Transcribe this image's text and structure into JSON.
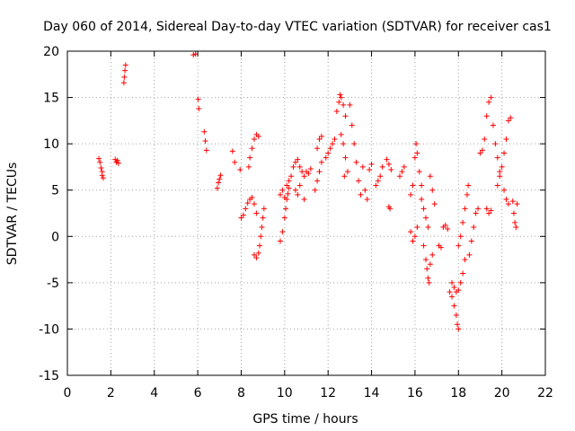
{
  "chart_data": {
    "type": "scatter",
    "title": "Day 060 of 2014, Sidereal Day-to-day VTEC variation (SDTVAR) for receiver cas1",
    "xlabel": "GPS time / hours",
    "ylabel": "SDTVAR / TECUs",
    "xlim": [
      0,
      22
    ],
    "ylim": [
      -15,
      20
    ],
    "xticks": [
      0,
      2,
      4,
      6,
      8,
      10,
      12,
      14,
      16,
      18,
      20,
      22
    ],
    "yticks": [
      -15,
      -10,
      -5,
      0,
      5,
      10,
      15,
      20
    ],
    "grid": true,
    "marker": "+",
    "color": "#ff0000",
    "series": [
      {
        "name": "cas1",
        "points": [
          [
            1.45,
            8.4
          ],
          [
            1.5,
            8.0
          ],
          [
            1.55,
            7.4
          ],
          [
            1.6,
            6.6
          ],
          [
            1.65,
            6.3
          ],
          [
            1.6,
            7.0
          ],
          [
            2.2,
            8.3
          ],
          [
            2.25,
            8.0
          ],
          [
            2.3,
            8.2
          ],
          [
            2.35,
            7.9
          ],
          [
            2.6,
            16.6
          ],
          [
            2.62,
            17.2
          ],
          [
            2.65,
            17.9
          ],
          [
            2.68,
            18.5
          ],
          [
            5.8,
            19.6
          ],
          [
            5.9,
            19.7
          ],
          [
            6.02,
            14.8
          ],
          [
            6.05,
            13.8
          ],
          [
            6.3,
            11.3
          ],
          [
            6.35,
            10.3
          ],
          [
            6.4,
            9.3
          ],
          [
            6.9,
            5.2
          ],
          [
            6.95,
            5.8
          ],
          [
            7.0,
            6.2
          ],
          [
            7.05,
            6.6
          ],
          [
            7.6,
            9.2
          ],
          [
            7.7,
            8.0
          ],
          [
            7.95,
            7.2
          ],
          [
            8.0,
            2.0
          ],
          [
            8.1,
            2.3
          ],
          [
            8.2,
            3.0
          ],
          [
            8.3,
            3.6
          ],
          [
            8.4,
            4.0
          ],
          [
            8.5,
            4.2
          ],
          [
            8.6,
            3.5
          ],
          [
            8.7,
            2.5
          ],
          [
            8.35,
            7.5
          ],
          [
            8.4,
            8.5
          ],
          [
            8.5,
            9.5
          ],
          [
            8.6,
            10.5
          ],
          [
            8.7,
            11.0
          ],
          [
            8.8,
            10.8
          ],
          [
            8.6,
            -2.0
          ],
          [
            8.7,
            -2.3
          ],
          [
            8.8,
            -1.8
          ],
          [
            8.85,
            -1.0
          ],
          [
            8.9,
            0.0
          ],
          [
            8.95,
            1.0
          ],
          [
            9.0,
            2.0
          ],
          [
            9.05,
            3.0
          ],
          [
            9.8,
            -0.5
          ],
          [
            9.9,
            0.5
          ],
          [
            10.0,
            2.0
          ],
          [
            10.05,
            3.0
          ],
          [
            10.1,
            4.0
          ],
          [
            10.15,
            4.6
          ],
          [
            10.2,
            5.2
          ],
          [
            9.8,
            4.5
          ],
          [
            9.9,
            5.0
          ],
          [
            10.0,
            4.2
          ],
          [
            10.1,
            5.5
          ],
          [
            10.2,
            6.0
          ],
          [
            10.3,
            6.5
          ],
          [
            10.4,
            7.5
          ],
          [
            10.5,
            8.0
          ],
          [
            10.6,
            8.3
          ],
          [
            10.7,
            7.5
          ],
          [
            10.8,
            7.0
          ],
          [
            10.9,
            6.5
          ],
          [
            11.0,
            7.0
          ],
          [
            10.5,
            5.0
          ],
          [
            10.6,
            4.5
          ],
          [
            10.7,
            5.5
          ],
          [
            10.9,
            4.0
          ],
          [
            11.1,
            6.8
          ],
          [
            11.2,
            7.3
          ],
          [
            11.4,
            5.0
          ],
          [
            11.5,
            6.0
          ],
          [
            11.6,
            7.0
          ],
          [
            11.7,
            8.0
          ],
          [
            11.5,
            9.5
          ],
          [
            11.6,
            10.5
          ],
          [
            11.7,
            10.8
          ],
          [
            11.9,
            8.5
          ],
          [
            12.0,
            9.0
          ],
          [
            12.1,
            9.5
          ],
          [
            12.2,
            10.0
          ],
          [
            12.3,
            10.5
          ],
          [
            12.4,
            13.5
          ],
          [
            12.5,
            14.5
          ],
          [
            12.55,
            15.3
          ],
          [
            12.6,
            15.0
          ],
          [
            12.7,
            14.2
          ],
          [
            12.8,
            13.0
          ],
          [
            12.6,
            11.0
          ],
          [
            12.7,
            10.0
          ],
          [
            12.8,
            8.5
          ],
          [
            12.9,
            7.0
          ],
          [
            12.75,
            6.5
          ],
          [
            13.0,
            14.2
          ],
          [
            13.1,
            12.0
          ],
          [
            13.2,
            10.0
          ],
          [
            13.3,
            8.0
          ],
          [
            13.4,
            6.0
          ],
          [
            13.5,
            4.5
          ],
          [
            13.6,
            7.5
          ],
          [
            13.7,
            5.0
          ],
          [
            13.8,
            4.0
          ],
          [
            13.9,
            7.2
          ],
          [
            14.0,
            7.8
          ],
          [
            14.2,
            5.5
          ],
          [
            14.3,
            6.0
          ],
          [
            14.4,
            6.5
          ],
          [
            14.5,
            7.5
          ],
          [
            14.7,
            8.3
          ],
          [
            14.8,
            7.8
          ],
          [
            14.9,
            7.2
          ],
          [
            14.8,
            3.2
          ],
          [
            14.85,
            3.0
          ],
          [
            15.3,
            6.5
          ],
          [
            15.4,
            7.0
          ],
          [
            15.5,
            7.5
          ],
          [
            15.8,
            4.5
          ],
          [
            15.9,
            5.5
          ],
          [
            16.0,
            8.5
          ],
          [
            16.05,
            10.0
          ],
          [
            16.1,
            9.0
          ],
          [
            16.2,
            7.0
          ],
          [
            16.3,
            5.5
          ],
          [
            15.8,
            0.5
          ],
          [
            15.9,
            -0.5
          ],
          [
            16.0,
            0.0
          ],
          [
            16.1,
            1.0
          ],
          [
            16.3,
            4.0
          ],
          [
            16.4,
            3.0
          ],
          [
            16.5,
            2.0
          ],
          [
            16.6,
            1.0
          ],
          [
            16.7,
            6.5
          ],
          [
            16.8,
            5.0
          ],
          [
            16.9,
            3.5
          ],
          [
            16.4,
            -1.0
          ],
          [
            16.5,
            -2.5
          ],
          [
            16.55,
            -3.5
          ],
          [
            16.6,
            -4.5
          ],
          [
            16.65,
            -5.0
          ],
          [
            16.7,
            -3.0
          ],
          [
            16.8,
            -2.0
          ],
          [
            17.1,
            -1.0
          ],
          [
            17.2,
            -1.2
          ],
          [
            17.3,
            1.0
          ],
          [
            17.4,
            1.2
          ],
          [
            17.5,
            0.8
          ],
          [
            17.6,
            -6.0
          ],
          [
            17.7,
            -6.5
          ],
          [
            17.8,
            -7.5
          ],
          [
            17.9,
            -8.5
          ],
          [
            17.95,
            -9.5
          ],
          [
            18.0,
            -10.0
          ],
          [
            17.7,
            -5.0
          ],
          [
            17.8,
            -5.5
          ],
          [
            17.9,
            -6.0
          ],
          [
            18.0,
            -5.8
          ],
          [
            18.1,
            -5.0
          ],
          [
            18.2,
            -4.0
          ],
          [
            18.3,
            -2.5
          ],
          [
            18.0,
            -1.0
          ],
          [
            18.1,
            0.0
          ],
          [
            18.2,
            1.5
          ],
          [
            18.3,
            3.0
          ],
          [
            18.4,
            4.5
          ],
          [
            18.45,
            5.5
          ],
          [
            18.5,
            -2.0
          ],
          [
            18.6,
            -0.5
          ],
          [
            18.7,
            1.0
          ],
          [
            18.8,
            2.5
          ],
          [
            18.9,
            3.0
          ],
          [
            19.0,
            9.0
          ],
          [
            19.1,
            9.3
          ],
          [
            19.2,
            10.5
          ],
          [
            19.3,
            13.0
          ],
          [
            19.4,
            14.5
          ],
          [
            19.5,
            15.0
          ],
          [
            19.6,
            12.0
          ],
          [
            19.7,
            10.0
          ],
          [
            19.8,
            8.5
          ],
          [
            19.9,
            7.0
          ],
          [
            19.3,
            3.0
          ],
          [
            19.4,
            2.5
          ],
          [
            19.5,
            2.8
          ],
          [
            19.8,
            5.5
          ],
          [
            19.9,
            6.5
          ],
          [
            20.0,
            7.5
          ],
          [
            20.1,
            9.0
          ],
          [
            20.2,
            10.5
          ],
          [
            20.3,
            12.5
          ],
          [
            20.4,
            12.8
          ],
          [
            20.1,
            5.0
          ],
          [
            20.2,
            4.0
          ],
          [
            20.3,
            3.5
          ],
          [
            20.5,
            3.8
          ],
          [
            20.55,
            2.5
          ],
          [
            20.6,
            1.5
          ],
          [
            20.65,
            1.0
          ],
          [
            20.7,
            3.5
          ]
        ]
      }
    ]
  }
}
